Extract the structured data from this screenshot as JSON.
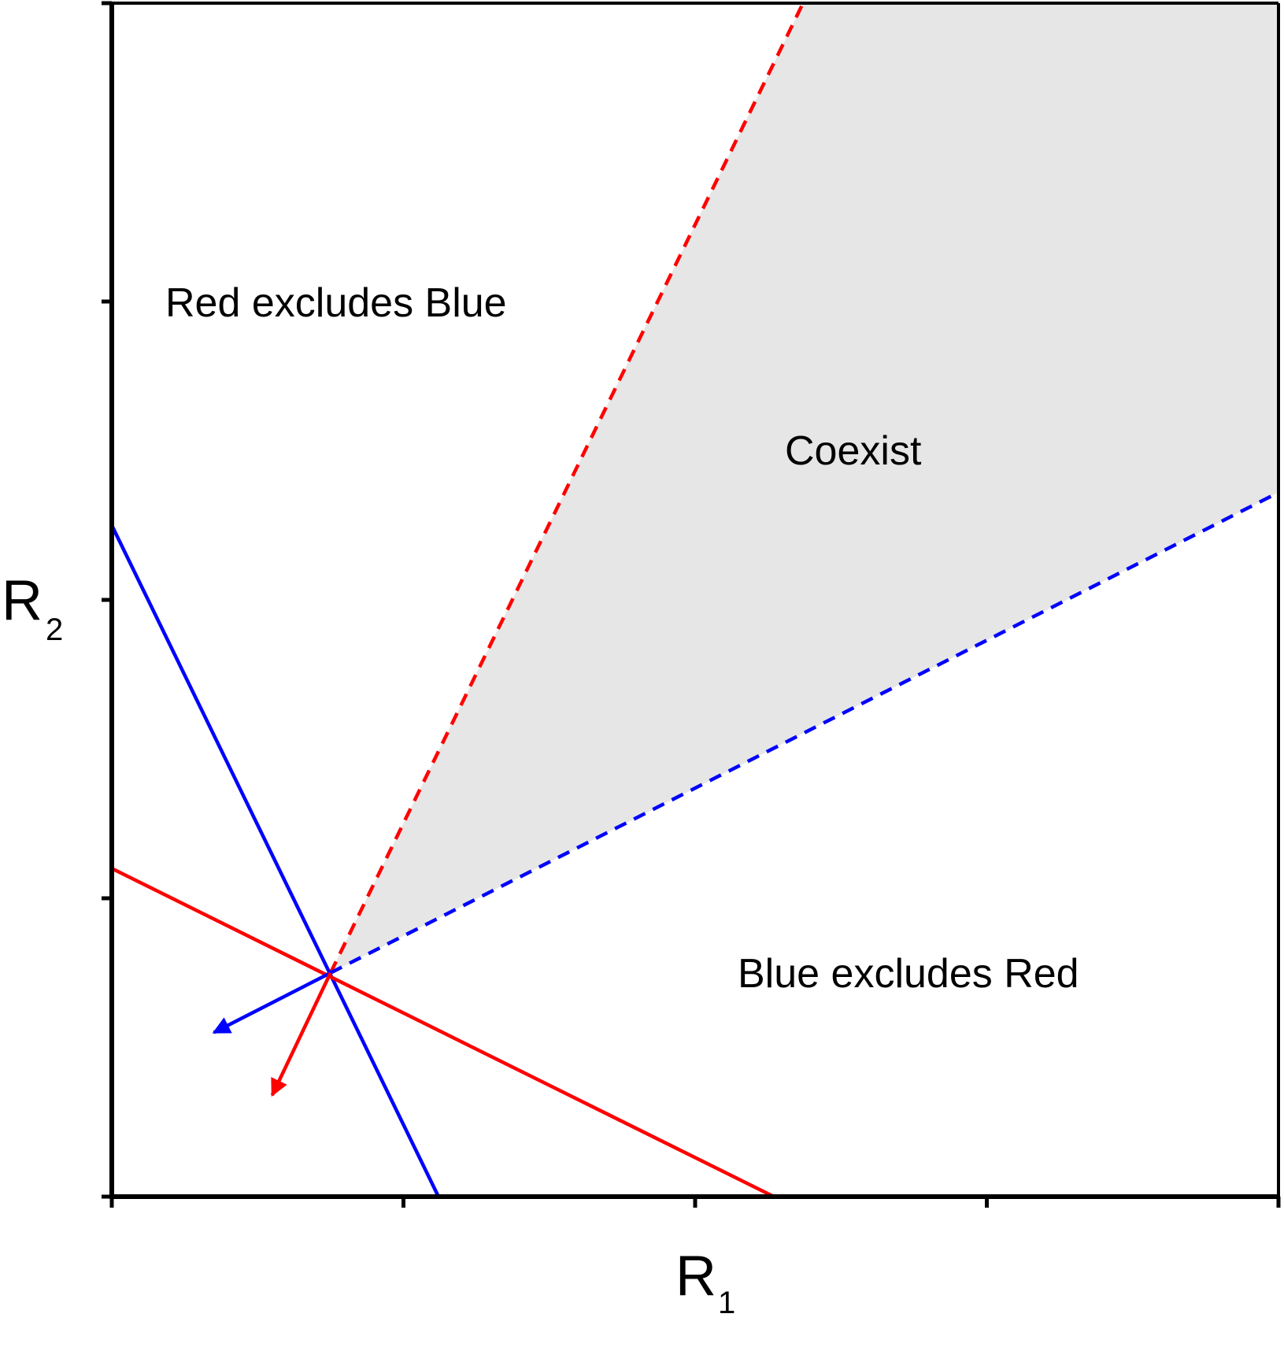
{
  "chart_data": {
    "type": "diagram",
    "xlabel": "R",
    "xlabel_sub": "1",
    "ylabel": "R",
    "ylabel_sub": "2",
    "xlim": [
      0,
      4
    ],
    "ylim": [
      0,
      4
    ],
    "grid": false,
    "region_labels": {
      "top_left": "Red excludes Blue",
      "middle": "Coexist",
      "bottom_right": "Blue excludes Red"
    },
    "colors": {
      "red": "#ff0000",
      "blue": "#0000ff",
      "region_fill": "#e6e6e6",
      "axis": "#000000"
    },
    "intersection": [
      0.75,
      0.75
    ],
    "red_zngi": {
      "x_intercept": 2.27,
      "y_intercept": 1.1
    },
    "blue_zngi": {
      "x_intercept": 1.12,
      "y_intercept": 2.25
    },
    "red_supply_boundary": {
      "to": [
        2.37,
        4.0
      ]
    },
    "blue_supply_boundary": {
      "to": [
        4.0,
        2.36
      ]
    },
    "blue_consumption_arrow": {
      "to": [
        0.35,
        0.55
      ]
    },
    "red_consumption_arrow": {
      "to": [
        0.55,
        0.34
      ]
    }
  }
}
